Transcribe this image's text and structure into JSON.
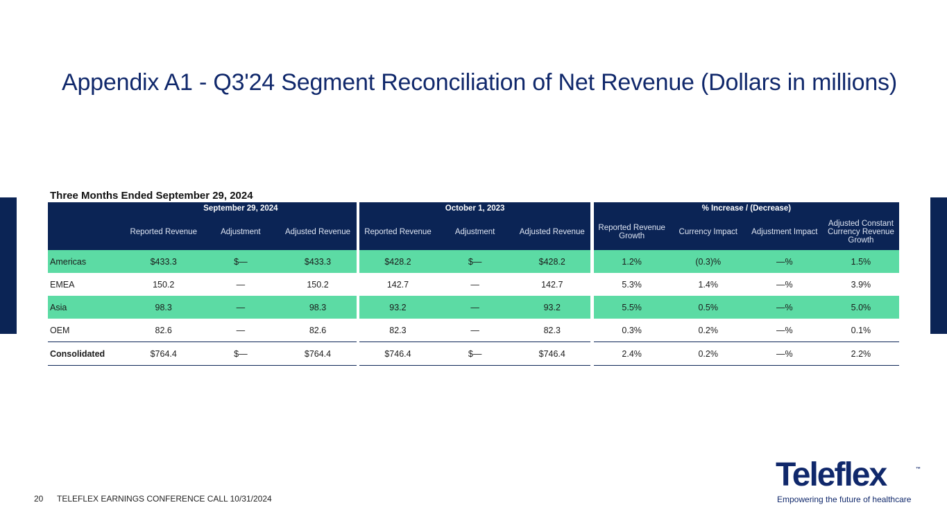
{
  "title": "Appendix A1 - Q3'24 Segment Reconciliation of Net Revenue (Dollars in millions)",
  "subtitle": "Three Months Ended September 29, 2024",
  "table": {
    "groups": [
      "September 29, 2024",
      "October 1, 2023",
      "% Increase / (Decrease)"
    ],
    "headers": {
      "g1": [
        "Reported Revenue",
        "Adjustment",
        "Adjusted Revenue"
      ],
      "g2": [
        "Reported Revenue",
        "Adjustment",
        "Adjusted Revenue"
      ],
      "g3": [
        "Reported Revenue Growth",
        "Currency Impact",
        "Adjustment Impact",
        "Adjusted Constant Currency Revenue Growth"
      ]
    },
    "rows": [
      {
        "label": "Americas",
        "values": [
          "$433.3",
          "$—",
          "$433.3",
          "$428.2",
          "$—",
          "$428.2",
          "1.2%",
          "(0.3)%",
          "—%",
          "1.5%"
        ]
      },
      {
        "label": "EMEA",
        "values": [
          "150.2",
          "—",
          "150.2",
          "142.7",
          "—",
          "142.7",
          "5.3%",
          "1.4%",
          "—%",
          "3.9%"
        ]
      },
      {
        "label": "Asia",
        "values": [
          "98.3",
          "—",
          "98.3",
          "93.2",
          "—",
          "93.2",
          "5.5%",
          "0.5%",
          "—%",
          "5.0%"
        ]
      },
      {
        "label": "OEM",
        "values": [
          "82.6",
          "—",
          "82.6",
          "82.3",
          "—",
          "82.3",
          "0.3%",
          "0.2%",
          "—%",
          "0.1%"
        ]
      },
      {
        "label": "Consolidated",
        "values": [
          "$764.4",
          "$—",
          "$764.4",
          "$746.4",
          "$—",
          "$746.4",
          "2.4%",
          "0.2%",
          "—%",
          "2.2%"
        ]
      }
    ]
  },
  "footer": {
    "page_number": "20",
    "text": "TELEFLEX EARNINGS CONFERENCE CALL 10/31/2024"
  },
  "logo": {
    "name": "Teleflex",
    "tm": "™",
    "tagline": "Empowering the future of healthcare"
  },
  "colors": {
    "navy": "#0b2455",
    "title": "#10286b",
    "row_highlight": "#5cdba4"
  }
}
